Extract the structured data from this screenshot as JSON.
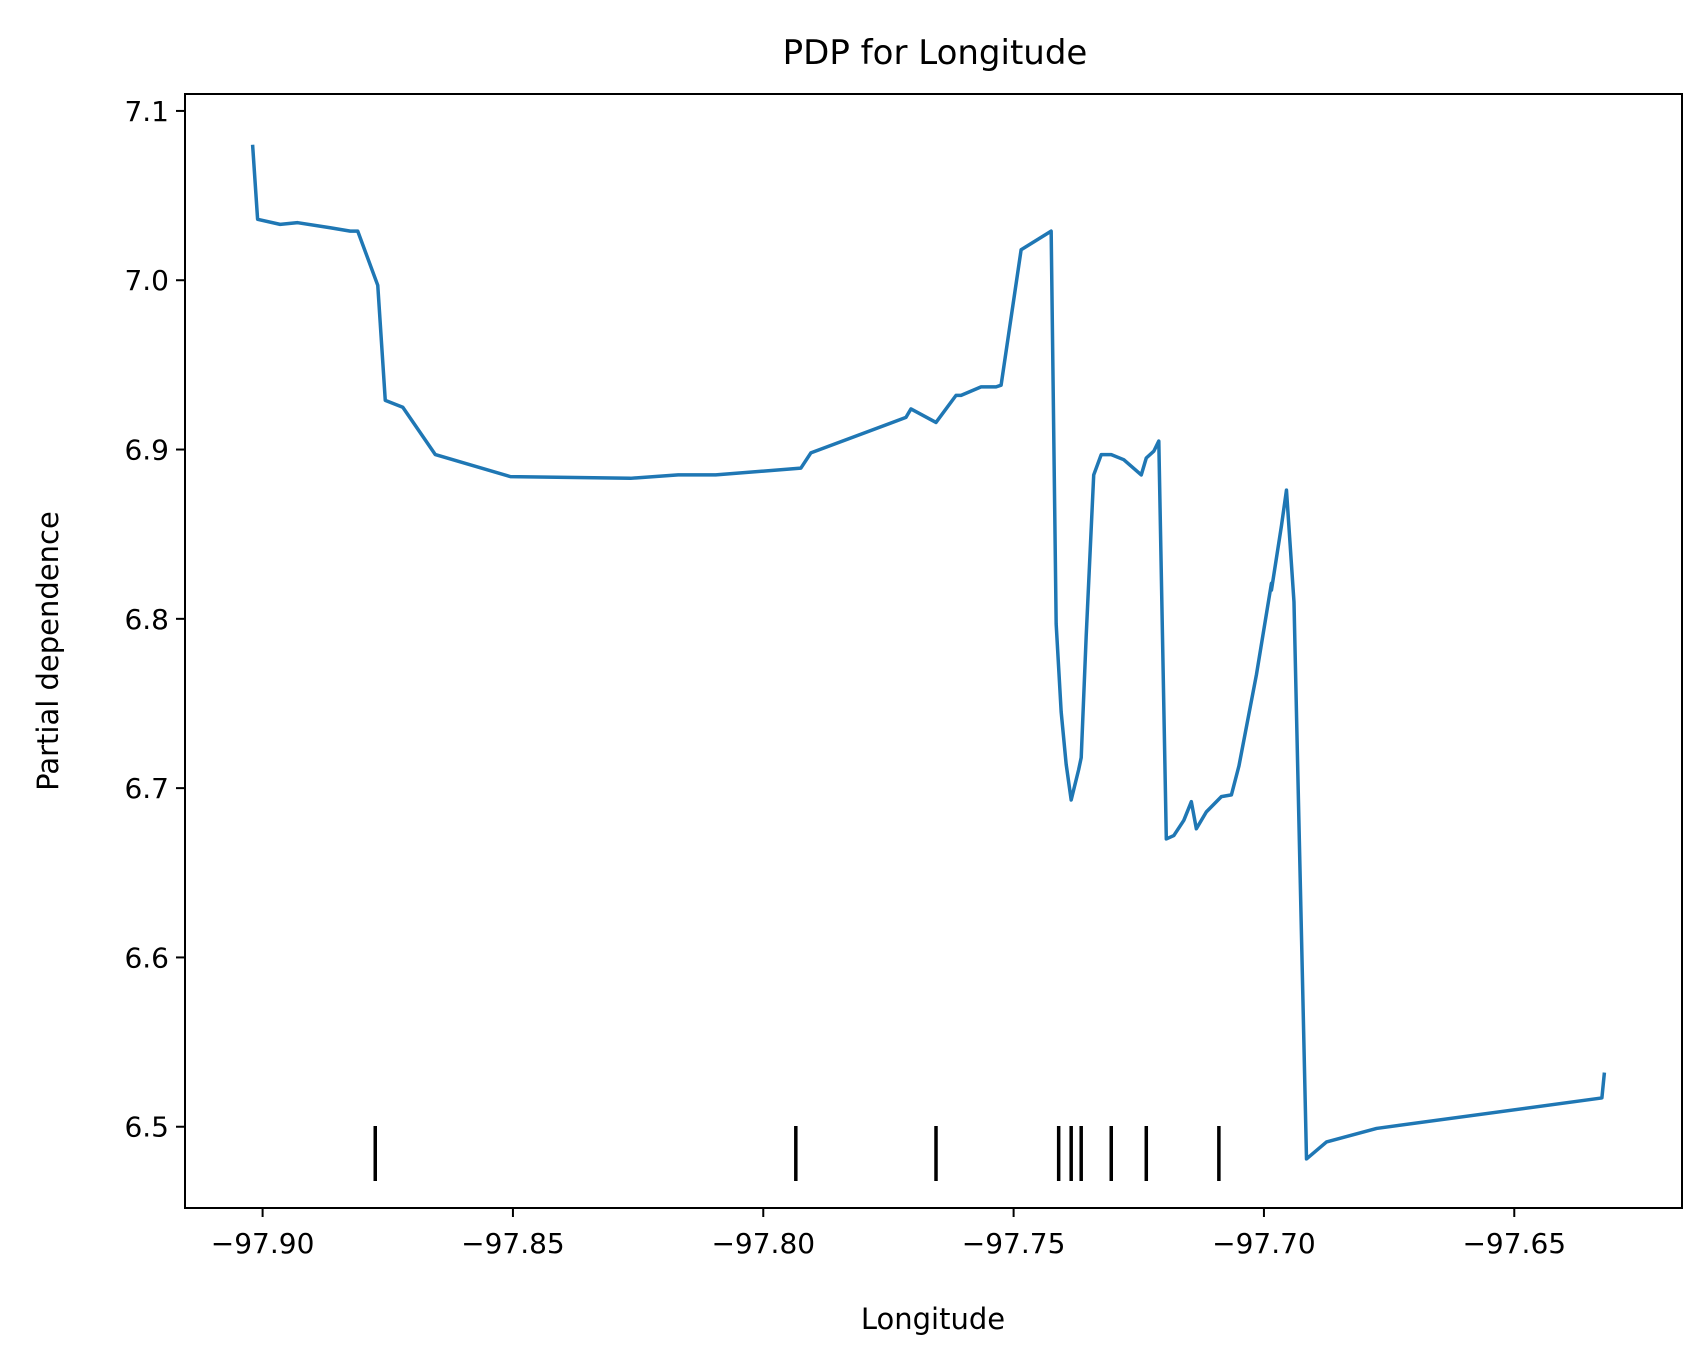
{
  "chart_data": {
    "type": "line",
    "title": "PDP for Longitude",
    "xlabel": "Longitude",
    "ylabel": "Partial dependence",
    "xlim": [
      -97.9155,
      -97.6165
    ],
    "ylim": [
      6.452,
      7.11
    ],
    "grid": false,
    "x_ticks": [
      -97.9,
      -97.85,
      -97.8,
      -97.75,
      -97.7,
      -97.65
    ],
    "x_tick_labels": [
      "−97.90",
      "−97.85",
      "−97.80",
      "−97.75",
      "−97.70",
      "−97.65"
    ],
    "y_ticks": [
      6.5,
      6.6,
      6.7,
      6.8,
      6.9,
      7.0,
      7.1
    ],
    "y_tick_labels": [
      "6.5",
      "6.6",
      "6.7",
      "6.8",
      "6.9",
      "7.0",
      "7.1"
    ],
    "line_color": "#1f77b4",
    "rug_color": "#000000",
    "series": [
      {
        "x": [
          -97.902,
          -97.901,
          -97.8965,
          -97.893,
          -97.8865,
          -97.8825,
          -97.881,
          -97.877,
          -97.8755,
          -97.872,
          -97.8655,
          -97.8505,
          -97.8265,
          -97.817,
          -97.8095,
          -97.7925,
          -97.7905,
          -97.7715,
          -97.7705,
          -97.7655,
          -97.7615,
          -97.7605,
          -97.7565,
          -97.7535,
          -97.7525,
          -97.7485,
          -97.7425,
          -97.7415,
          -97.7405,
          -97.7395,
          -97.7385,
          -97.737,
          -97.7365,
          -97.7355,
          -97.734,
          -97.7325,
          -97.7305,
          -97.728,
          -97.7245,
          -97.7235,
          -97.722,
          -97.721,
          -97.7195,
          -97.718,
          -97.716,
          -97.7145,
          -97.7135,
          -97.7115,
          -97.7085,
          -97.7065,
          -97.705,
          -97.7015,
          -97.6985,
          -97.6985,
          -97.6965,
          -97.6955,
          -97.694,
          -97.6915,
          -97.6875,
          -97.6775,
          -97.6325,
          -97.632
        ],
        "y": [
          7.08,
          7.036,
          7.033,
          7.034,
          7.031,
          7.029,
          7.029,
          6.997,
          6.929,
          6.925,
          6.897,
          6.884,
          6.883,
          6.885,
          6.885,
          6.889,
          6.898,
          6.919,
          6.924,
          6.916,
          6.932,
          6.932,
          6.937,
          6.937,
          6.938,
          7.018,
          7.029,
          6.797,
          6.745,
          6.714,
          6.693,
          6.711,
          6.718,
          6.79,
          6.885,
          6.897,
          6.897,
          6.894,
          6.885,
          6.895,
          6.899,
          6.905,
          6.67,
          6.672,
          6.681,
          6.692,
          6.676,
          6.686,
          6.695,
          6.696,
          6.713,
          6.767,
          6.821,
          6.817,
          6.855,
          6.876,
          6.81,
          6.481,
          6.491,
          6.499,
          6.517,
          6.532
        ]
      }
    ],
    "rug_x": [
      -97.8775,
      -97.7935,
      -97.7655,
      -97.741,
      -97.7385,
      -97.7365,
      -97.7305,
      -97.7235,
      -97.709
    ]
  }
}
